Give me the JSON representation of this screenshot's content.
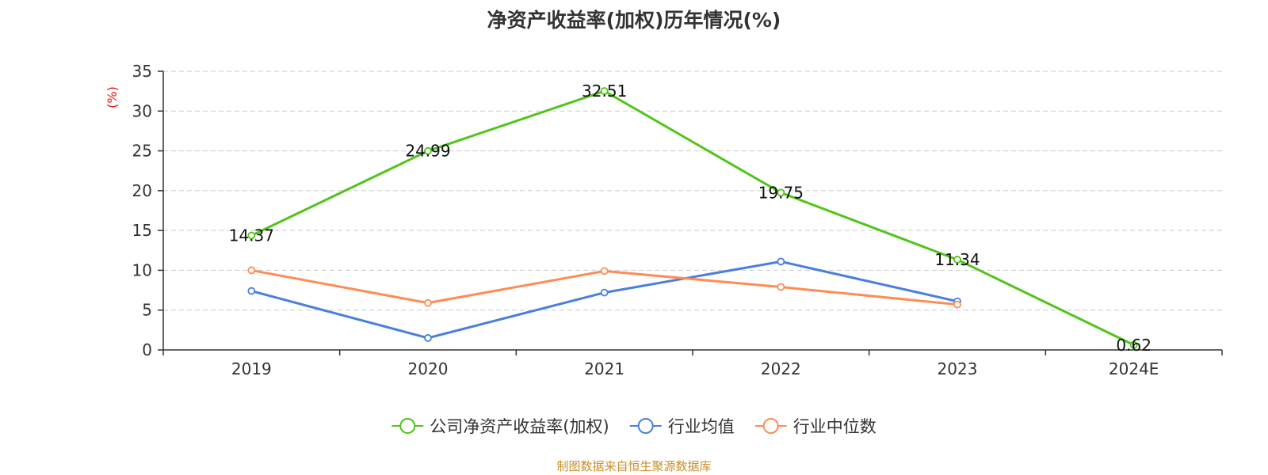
{
  "colors": {
    "company": "#52c41a",
    "industry_avg": "#4a7fdb",
    "industry_median": "#ff8c55",
    "unit": "#ee1111",
    "source": "#c8902a",
    "grid": "#cccccc",
    "axis": "#333333"
  },
  "chart_data": {
    "type": "line",
    "title": "净资产收益率(加权)历年情况(%)",
    "ylabel": "(%)",
    "ylim": [
      0,
      35
    ],
    "yticks": [
      0,
      5,
      10,
      15,
      20,
      25,
      30,
      35
    ],
    "grid": true,
    "legend_position": "bottom",
    "categories": [
      "2019",
      "2020",
      "2021",
      "2022",
      "2023",
      "2024E"
    ],
    "series": [
      {
        "name": "公司净资产收益率(加权)",
        "values": [
          14.37,
          24.99,
          32.51,
          19.75,
          11.34,
          0.62
        ],
        "labels": [
          "14.37",
          "24.99",
          "32.51",
          "19.75",
          "11.34",
          "0.62"
        ]
      },
      {
        "name": "行业均值",
        "values": [
          7.4,
          1.5,
          7.2,
          11.1,
          6.1,
          null
        ]
      },
      {
        "name": "行业中位数",
        "values": [
          10.0,
          5.9,
          9.9,
          7.9,
          5.7,
          null
        ]
      }
    ]
  },
  "source_note": "制图数据来自恒生聚源数据库"
}
